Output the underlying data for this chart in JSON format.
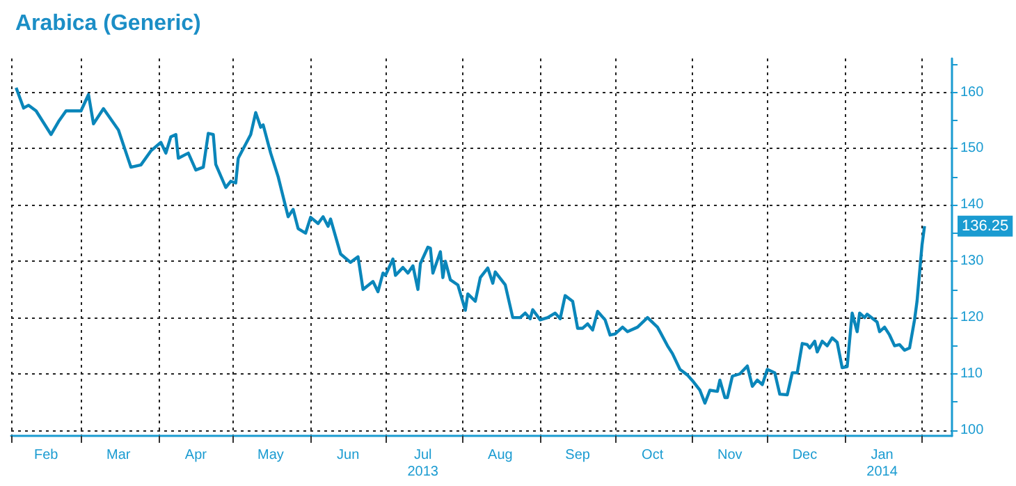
{
  "chart_data": {
    "type": "line",
    "title": "Arabica (Generic)",
    "x": [
      "2013-02-03",
      "2013-02-06",
      "2013-02-08",
      "2013-02-11",
      "2013-02-14",
      "2013-02-17",
      "2013-02-20",
      "2013-02-23",
      "2013-03-01",
      "2013-03-04",
      "2013-03-06",
      "2013-03-10",
      "2013-03-16",
      "2013-03-21",
      "2013-03-25",
      "2013-03-29",
      "2013-04-02",
      "2013-04-04",
      "2013-04-06",
      "2013-04-08",
      "2013-04-09",
      "2013-04-13",
      "2013-04-16",
      "2013-04-19",
      "2013-04-21",
      "2013-04-23",
      "2013-04-24",
      "2013-04-28",
      "2013-04-30",
      "2013-05-02",
      "2013-05-03",
      "2013-05-08",
      "2013-05-10",
      "2013-05-12",
      "2013-05-13",
      "2013-05-16",
      "2013-05-19",
      "2013-05-23",
      "2013-05-25",
      "2013-05-27",
      "2013-05-30",
      "2013-06-01",
      "2013-06-04",
      "2013-06-06",
      "2013-06-08",
      "2013-06-09",
      "2013-06-13",
      "2013-06-17",
      "2013-06-20",
      "2013-06-22",
      "2013-06-26",
      "2013-06-28",
      "2013-06-30",
      "2013-07-01",
      "2013-07-04",
      "2013-07-05",
      "2013-07-08",
      "2013-07-10",
      "2013-07-12",
      "2013-07-14",
      "2013-07-15",
      "2013-07-18",
      "2013-07-19",
      "2013-07-20",
      "2013-07-23",
      "2013-07-24",
      "2013-07-25",
      "2013-07-27",
      "2013-07-30",
      "2013-08-02",
      "2013-08-03",
      "2013-08-06",
      "2013-08-08",
      "2013-08-11",
      "2013-08-13",
      "2013-08-14",
      "2013-08-18",
      "2013-08-21",
      "2013-08-24",
      "2013-08-26",
      "2013-08-28",
      "2013-08-29",
      "2013-09-01",
      "2013-09-04",
      "2013-09-07",
      "2013-09-09",
      "2013-09-11",
      "2013-09-14",
      "2013-09-16",
      "2013-09-18",
      "2013-09-20",
      "2013-09-22",
      "2013-09-24",
      "2013-09-27",
      "2013-09-29",
      "2013-10-01",
      "2013-10-04",
      "2013-10-06",
      "2013-10-10",
      "2013-10-14",
      "2013-10-18",
      "2013-10-19",
      "2013-10-22",
      "2013-10-24",
      "2013-10-27",
      "2013-10-30",
      "2013-11-01",
      "2013-11-04",
      "2013-11-06",
      "2013-11-08",
      "2013-11-11",
      "2013-11-12",
      "2013-11-14",
      "2013-11-15",
      "2013-11-17",
      "2013-11-20",
      "2013-11-23",
      "2013-11-25",
      "2013-11-27",
      "2013-11-29",
      "2013-12-01",
      "2013-12-04",
      "2013-12-06",
      "2013-12-09",
      "2013-12-11",
      "2013-12-13",
      "2013-12-15",
      "2013-12-17",
      "2013-12-18",
      "2013-12-20",
      "2013-12-21",
      "2013-12-23",
      "2013-12-25",
      "2013-12-27",
      "2013-12-29",
      "2013-12-31",
      "2014-01-02",
      "2014-01-04",
      "2014-01-06",
      "2014-01-07",
      "2014-01-09",
      "2014-01-10",
      "2014-01-14",
      "2014-01-15",
      "2014-01-17",
      "2014-01-19",
      "2014-01-21",
      "2014-01-23",
      "2014-01-25",
      "2014-01-27",
      "2014-01-29",
      "2014-01-30",
      "2014-02-01",
      "2014-02-02"
    ],
    "series": [
      {
        "color": "#0a86ba",
        "values": [
          160.8,
          157.2,
          157.7,
          156.7,
          154.6,
          152.5,
          154.8,
          156.7,
          156.7,
          159.6,
          154.4,
          157.1,
          153.3,
          146.7,
          147.1,
          149.6,
          151.1,
          149.2,
          152.1,
          152.5,
          148.3,
          149.2,
          146.2,
          146.7,
          152.7,
          152.5,
          147.2,
          143.1,
          144.2,
          143.9,
          148.3,
          152.5,
          156.4,
          153.8,
          154.2,
          149.2,
          145,
          137.9,
          139.2,
          135.8,
          135,
          137.8,
          136.7,
          137.9,
          136.2,
          137.5,
          131.3,
          129.8,
          130.8,
          125,
          126.4,
          124.6,
          127.9,
          127.5,
          130.4,
          127.5,
          128.9,
          127.9,
          129.2,
          125,
          129.6,
          132.5,
          132.3,
          127.9,
          131.7,
          127.1,
          130,
          126.7,
          125.8,
          121.3,
          124.2,
          122.9,
          127.1,
          128.8,
          126.1,
          128.1,
          125.8,
          120,
          120,
          120.8,
          119.8,
          121.4,
          119.6,
          120,
          120.8,
          119.8,
          123.9,
          122.9,
          118.1,
          118.1,
          118.9,
          117.8,
          121.1,
          119.6,
          116.9,
          117.1,
          118.3,
          117.5,
          118.3,
          120,
          118.3,
          117.5,
          115,
          113.6,
          110.8,
          109.8,
          108.8,
          107.1,
          104.8,
          107.1,
          106.9,
          108.9,
          105.8,
          105.8,
          109.6,
          110,
          111.4,
          107.8,
          108.9,
          108.1,
          110.8,
          110.2,
          106.4,
          106.3,
          110.2,
          110.2,
          115.4,
          115.2,
          114.6,
          115.8,
          113.9,
          115.8,
          115,
          116.4,
          115.6,
          111.1,
          111.3,
          120.8,
          117.5,
          120.8,
          120,
          120.6,
          119.2,
          117.5,
          118.3,
          116.9,
          115,
          115.2,
          114.2,
          114.6,
          119.6,
          122.9,
          132.9,
          136.25
        ]
      }
    ],
    "xlim": [
      "2013-02-01",
      "2014-02-13"
    ],
    "xticks": [
      {
        "value": "2013-02-01",
        "label": null
      },
      {
        "value": "2013-02-15",
        "label": "Feb"
      },
      {
        "value": "2013-03-01",
        "label": null
      },
      {
        "value": "2013-03-16",
        "label": "Mar"
      },
      {
        "value": "2013-04-01",
        "label": null
      },
      {
        "value": "2013-04-16",
        "label": "Apr"
      },
      {
        "value": "2013-05-01",
        "label": null
      },
      {
        "value": "2013-05-16",
        "label": "May"
      },
      {
        "value": "2013-06-01",
        "label": null
      },
      {
        "value": "2013-06-16",
        "label": "Jun"
      },
      {
        "value": "2013-07-01",
        "label": null
      },
      {
        "value": "2013-07-16",
        "label": "Jul\n2013"
      },
      {
        "value": "2013-08-01",
        "label": null
      },
      {
        "value": "2013-08-16",
        "label": "Aug"
      },
      {
        "value": "2013-09-01",
        "label": null
      },
      {
        "value": "2013-09-16",
        "label": "Sep"
      },
      {
        "value": "2013-10-01",
        "label": null
      },
      {
        "value": "2013-10-16",
        "label": "Oct"
      },
      {
        "value": "2013-11-01",
        "label": null
      },
      {
        "value": "2013-11-16",
        "label": "Nov"
      },
      {
        "value": "2013-12-01",
        "label": null
      },
      {
        "value": "2013-12-16",
        "label": "Dec"
      },
      {
        "value": "2014-01-01",
        "label": null
      },
      {
        "value": "2014-01-16",
        "label": "Jan\n2014"
      },
      {
        "value": "2014-02-01",
        "label": null
      }
    ],
    "ylim": [
      99,
      166
    ],
    "yticks": [
      100,
      {
        "value": 105,
        "label": null
      },
      110,
      {
        "value": 115,
        "label": null
      },
      120,
      {
        "value": 125,
        "label": null
      },
      130,
      {
        "value": 135,
        "label": null
      },
      140,
      {
        "value": 145,
        "label": null
      },
      150,
      {
        "value": 155,
        "label": null
      },
      160,
      {
        "value": 165,
        "label": null
      }
    ],
    "grid": true,
    "marker": "none",
    "line_style": "solid",
    "annotations": [
      {
        "text": "136.25",
        "x": "2014-02-02",
        "y": 136.25
      }
    ]
  }
}
